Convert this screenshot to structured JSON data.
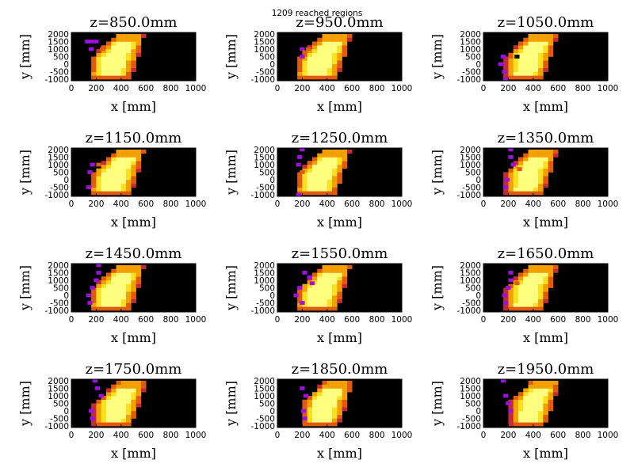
{
  "suptitle": "1209 reached regions",
  "colors": {
    "background": "#000000",
    "colormap": [
      "#000000",
      "#5a00c8",
      "#9d10e0",
      "#c42a3a",
      "#e05a10",
      "#f3a000",
      "#fde020",
      "#ffff80"
    ]
  },
  "chart_data": {
    "type": "heatmap",
    "title": "1209 reached regions",
    "xlabel": "x [mm]",
    "ylabel": "y [mm]",
    "xlim": [
      0,
      1000
    ],
    "ylim": [
      -1100,
      2100
    ],
    "xticks": [
      0,
      200,
      400,
      600,
      800,
      1000
    ],
    "yticks": [
      -1000,
      -500,
      0,
      500,
      1000,
      1500,
      2000
    ],
    "panels": [
      {
        "title": "z=850.0mm",
        "z": 850,
        "spread": 0.55,
        "low": 150,
        "cells": [
          [
            180,
            1500,
            "#9d10e0"
          ],
          [
            110,
            1500,
            "#9d10e0"
          ],
          [
            140,
            1500,
            "#9d10e0"
          ],
          [
            140,
            1000,
            "#9d10e0"
          ],
          [
            230,
            1000,
            "#e05a10"
          ]
        ]
      },
      {
        "title": "z=950.0mm",
        "z": 950,
        "spread": 0.65,
        "low": 150,
        "cells": [
          [
            180,
            1000,
            "#9d10e0"
          ],
          [
            180,
            500,
            "#9d10e0"
          ],
          [
            200,
            800,
            "#e05a10"
          ],
          [
            230,
            1000,
            "#e05a10"
          ]
        ]
      },
      {
        "title": "z=1050.0mm",
        "z": 1050,
        "spread": 0.65,
        "low": 180,
        "cells": [
          [
            120,
            0,
            "#9d10e0"
          ],
          [
            140,
            500,
            "#9d10e0"
          ],
          [
            150,
            -500,
            "#9d10e0"
          ],
          [
            160,
            -1000,
            "#9d10e0"
          ],
          [
            200,
            500,
            "#e05a10"
          ],
          [
            250,
            500,
            "#000000"
          ]
        ]
      },
      {
        "title": "z=1150.0mm",
        "z": 1150,
        "spread": 0.6,
        "low": 150,
        "cells": [
          [
            150,
            1000,
            "#9d10e0"
          ],
          [
            130,
            500,
            "#9d10e0"
          ],
          [
            120,
            -500,
            "#9d10e0"
          ],
          [
            200,
            1000,
            "#e05a10"
          ]
        ]
      },
      {
        "title": "z=1250.0mm",
        "z": 1250,
        "spread": 0.5,
        "low": 150,
        "cells": [
          [
            180,
            2000,
            "#9d10e0"
          ],
          [
            160,
            1500,
            "#9d10e0"
          ],
          [
            150,
            1000,
            "#9d10e0"
          ],
          [
            150,
            -1000,
            "#9d10e0"
          ],
          [
            180,
            500,
            "#e05a10"
          ]
        ]
      },
      {
        "title": "z=1350.0mm",
        "z": 1350,
        "spread": 0.65,
        "low": 180,
        "cells": [
          [
            200,
            2000,
            "#9d10e0"
          ],
          [
            200,
            1500,
            "#9d10e0"
          ],
          [
            220,
            1000,
            "#9d10e0"
          ],
          [
            170,
            0,
            "#9d10e0"
          ],
          [
            160,
            -500,
            "#9d10e0"
          ],
          [
            270,
            700,
            "#e05a10"
          ]
        ]
      },
      {
        "title": "z=1450.0mm",
        "z": 1450,
        "spread": 0.55,
        "low": 150,
        "cells": [
          [
            200,
            2000,
            "#9d10e0"
          ],
          [
            200,
            1500,
            "#9d10e0"
          ],
          [
            180,
            1000,
            "#9d10e0"
          ],
          [
            150,
            500,
            "#9d10e0"
          ],
          [
            120,
            0,
            "#9d10e0"
          ],
          [
            130,
            -500,
            "#9d10e0"
          ]
        ]
      },
      {
        "title": "z=1550.0mm",
        "z": 1550,
        "spread": 0.6,
        "low": 150,
        "cells": [
          [
            200,
            1500,
            "#9d10e0"
          ],
          [
            240,
            1200,
            "#9d10e0"
          ],
          [
            260,
            800,
            "#9d10e0"
          ],
          [
            160,
            500,
            "#9d10e0"
          ],
          [
            130,
            0,
            "#9d10e0"
          ],
          [
            180,
            -500,
            "#9d10e0"
          ]
        ]
      },
      {
        "title": "z=1650.0mm",
        "z": 1650,
        "spread": 0.65,
        "low": 180,
        "cells": [
          [
            200,
            1500,
            "#9d10e0"
          ],
          [
            200,
            1000,
            "#9d10e0"
          ],
          [
            180,
            500,
            "#9d10e0"
          ],
          [
            150,
            0,
            "#9d10e0"
          ],
          [
            160,
            -500,
            "#9d10e0"
          ],
          [
            250,
            800,
            "#e05a10"
          ]
        ]
      },
      {
        "title": "z=1750.0mm",
        "z": 1750,
        "spread": 0.75,
        "low": 180,
        "cells": [
          [
            170,
            2000,
            "#9d10e0"
          ],
          [
            190,
            1500,
            "#9d10e0"
          ],
          [
            220,
            1000,
            "#9d10e0"
          ],
          [
            140,
            0,
            "#9d10e0"
          ],
          [
            150,
            -500,
            "#9d10e0"
          ]
        ]
      },
      {
        "title": "z=1850.0mm",
        "z": 1850,
        "spread": 0.85,
        "low": 200,
        "cells": [
          [
            180,
            1500,
            "#9d10e0"
          ],
          [
            180,
            2000,
            "#000000"
          ],
          [
            210,
            1000,
            "#9d10e0"
          ],
          [
            190,
            0,
            "#9d10e0"
          ],
          [
            200,
            -500,
            "#9d10e0"
          ]
        ]
      },
      {
        "title": "z=1950.0mm",
        "z": 1950,
        "spread": 0.95,
        "low": 220,
        "cells": [
          [
            140,
            2000,
            "#9d10e0"
          ],
          [
            160,
            1000,
            "#9d10e0"
          ],
          [
            180,
            500,
            "#9d10e0"
          ],
          [
            200,
            0,
            "#9d10e0"
          ]
        ]
      }
    ]
  }
}
